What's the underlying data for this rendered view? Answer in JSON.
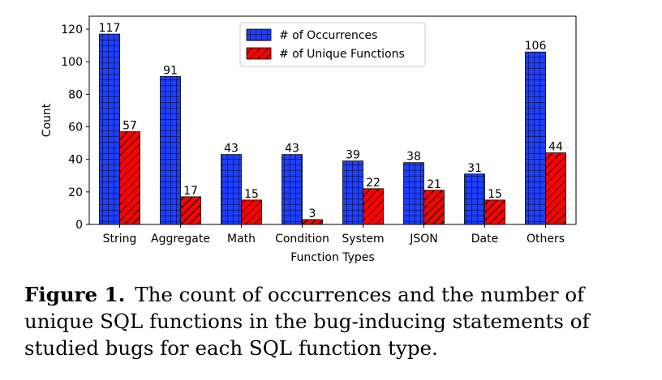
{
  "chart_data": {
    "type": "bar",
    "categories": [
      "String",
      "Aggregate",
      "Math",
      "Condition",
      "System",
      "JSON",
      "Date",
      "Others"
    ],
    "series": [
      {
        "name": "# of Occurrences",
        "values": [
          117,
          91,
          43,
          43,
          39,
          38,
          31,
          106
        ],
        "color": "#1f3fff",
        "pattern": "grid"
      },
      {
        "name": "# of Unique Functions",
        "values": [
          57,
          17,
          15,
          3,
          22,
          21,
          15,
          44
        ],
        "color": "#ff0000",
        "pattern": "diagonal"
      }
    ],
    "xlabel": "Function Types",
    "ylabel": "Count",
    "ylim": [
      0,
      128
    ],
    "yticks": [
      0,
      20,
      40,
      60,
      80,
      100,
      120
    ],
    "grid": false,
    "legend": "top-center"
  },
  "caption": {
    "label": "Figure 1.",
    "text": "The count of occurrences and the number of unique SQL functions in the bug-inducing statements of studied bugs for each SQL function type."
  }
}
